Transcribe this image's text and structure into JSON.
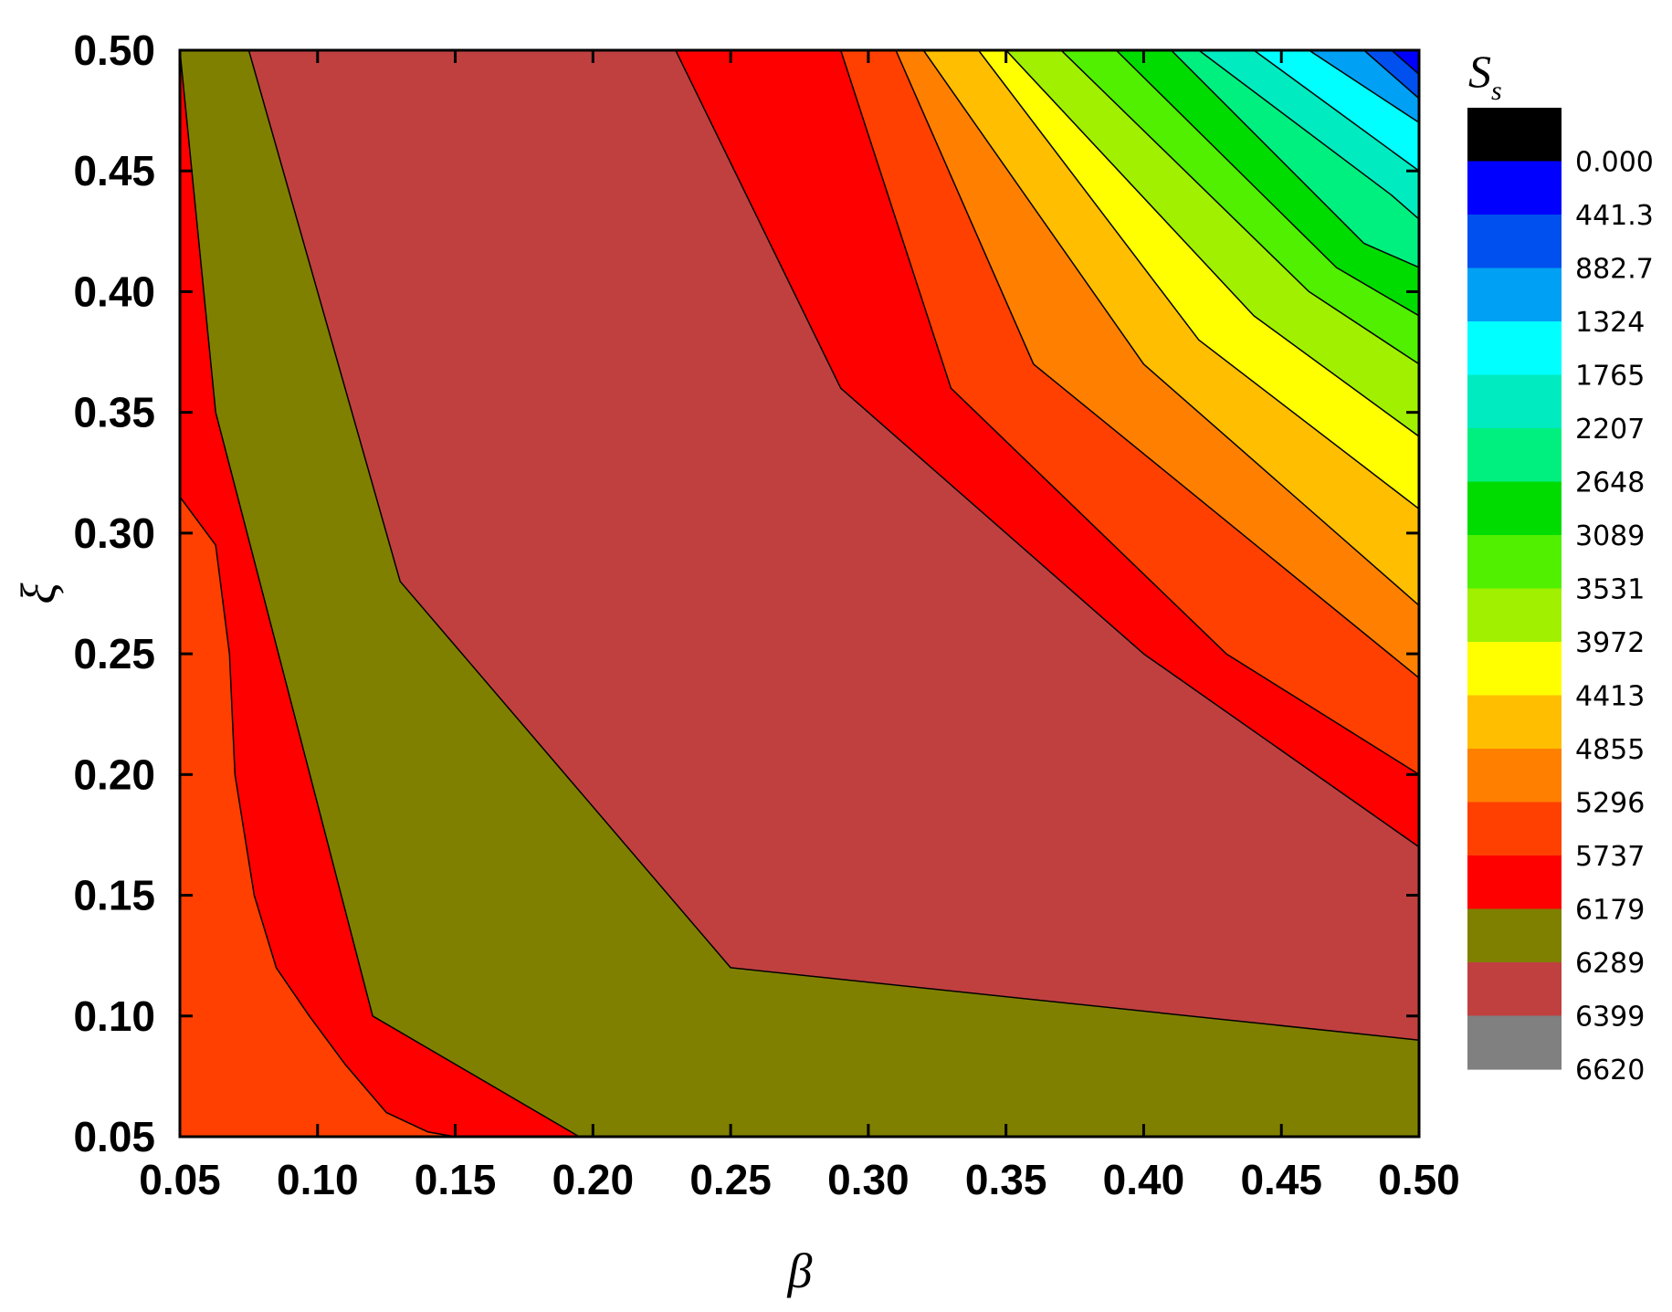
{
  "chart_data": {
    "type": "contour",
    "title": "",
    "xlabel": "β",
    "ylabel": "ξ",
    "xlim": [
      0.05,
      0.5
    ],
    "ylim": [
      0.05,
      0.5
    ],
    "x_ticks": [
      "0.05",
      "0.10",
      "0.15",
      "0.20",
      "0.25",
      "0.30",
      "0.35",
      "0.40",
      "0.45",
      "0.50"
    ],
    "y_ticks": [
      "0.05",
      "0.10",
      "0.15",
      "0.20",
      "0.25",
      "0.30",
      "0.35",
      "0.40",
      "0.45",
      "0.50"
    ],
    "colorbar": {
      "title": "S",
      "title_sub": "s",
      "levels": [
        "0.000",
        "441.3",
        "882.7",
        "1324",
        "1765",
        "2207",
        "2648",
        "3089",
        "3531",
        "3972",
        "4413",
        "4855",
        "5296",
        "5737",
        "6179",
        "6289",
        "6399",
        "6620"
      ],
      "colors": [
        "#000000",
        "#0000ff",
        "#0050f0",
        "#00a0f4",
        "#00ffff",
        "#00ebc0",
        "#00f080",
        "#00dc00",
        "#50f000",
        "#a0f000",
        "#ffff00",
        "#ffbe00",
        "#ff8000",
        "#ff4000",
        "#ff0000",
        "#808000",
        "#c04040",
        "#808080"
      ]
    },
    "regions": [
      {
        "fill": "#ff4000",
        "boundary": [
          [
            0.05,
            0.05
          ],
          [
            0.5,
            0.05
          ],
          [
            0.5,
            0.5
          ],
          [
            0.05,
            0.5
          ]
        ]
      },
      {
        "fill": "#ff0000",
        "boundary": [
          [
            0.05,
            0.5
          ],
          [
            0.05,
            0.315
          ],
          [
            0.063,
            0.295
          ],
          [
            0.068,
            0.25
          ],
          [
            0.07,
            0.2
          ],
          [
            0.077,
            0.15
          ],
          [
            0.085,
            0.12
          ],
          [
            0.097,
            0.1
          ],
          [
            0.11,
            0.08
          ],
          [
            0.125,
            0.06
          ],
          [
            0.14,
            0.052
          ],
          [
            0.15,
            0.05
          ],
          [
            0.5,
            0.05
          ],
          [
            0.5,
            0.5
          ]
        ]
      },
      {
        "fill": "#808000",
        "boundary": [
          [
            0.05,
            0.5
          ],
          [
            0.05,
            0.5
          ],
          [
            0.063,
            0.35
          ],
          [
            0.12,
            0.1
          ],
          [
            0.21,
            0.04
          ],
          [
            0.33,
            0.02
          ],
          [
            0.5,
            0.02
          ],
          [
            0.5,
            0.5
          ]
        ]
      },
      {
        "fill": "#c04040",
        "boundary": [
          [
            0.075,
            0.5
          ],
          [
            0.13,
            0.28
          ],
          [
            0.25,
            0.12
          ],
          [
            0.5,
            0.09
          ],
          [
            0.5,
            0.5
          ]
        ]
      },
      {
        "fill": "#ff0000",
        "boundary": [
          [
            0.23,
            0.5
          ],
          [
            0.29,
            0.36
          ],
          [
            0.4,
            0.25
          ],
          [
            0.5,
            0.17
          ],
          [
            0.5,
            0.5
          ]
        ]
      },
      {
        "fill": "#ff4000",
        "boundary": [
          [
            0.29,
            0.5
          ],
          [
            0.33,
            0.36
          ],
          [
            0.43,
            0.25
          ],
          [
            0.5,
            0.2
          ],
          [
            0.5,
            0.5
          ]
        ]
      },
      {
        "fill": "#ff8000",
        "boundary": [
          [
            0.31,
            0.5
          ],
          [
            0.36,
            0.37
          ],
          [
            0.5,
            0.24
          ],
          [
            0.5,
            0.5
          ]
        ]
      },
      {
        "fill": "#ffbe00",
        "boundary": [
          [
            0.32,
            0.5
          ],
          [
            0.4,
            0.37
          ],
          [
            0.5,
            0.27
          ],
          [
            0.5,
            0.5
          ]
        ]
      },
      {
        "fill": "#ffff00",
        "boundary": [
          [
            0.34,
            0.5
          ],
          [
            0.42,
            0.38
          ],
          [
            0.5,
            0.31
          ],
          [
            0.5,
            0.5
          ]
        ]
      },
      {
        "fill": "#a0f000",
        "boundary": [
          [
            0.35,
            0.5
          ],
          [
            0.44,
            0.39
          ],
          [
            0.5,
            0.34
          ],
          [
            0.5,
            0.5
          ]
        ]
      },
      {
        "fill": "#50f000",
        "boundary": [
          [
            0.37,
            0.5
          ],
          [
            0.46,
            0.4
          ],
          [
            0.5,
            0.37
          ],
          [
            0.5,
            0.5
          ]
        ]
      },
      {
        "fill": "#00dc00",
        "boundary": [
          [
            0.39,
            0.5
          ],
          [
            0.47,
            0.41
          ],
          [
            0.5,
            0.39
          ],
          [
            0.5,
            0.5
          ]
        ]
      },
      {
        "fill": "#00f080",
        "boundary": [
          [
            0.41,
            0.5
          ],
          [
            0.48,
            0.42
          ],
          [
            0.5,
            0.41
          ],
          [
            0.5,
            0.5
          ]
        ]
      },
      {
        "fill": "#00ebc0",
        "boundary": [
          [
            0.42,
            0.5
          ],
          [
            0.49,
            0.44
          ],
          [
            0.5,
            0.43
          ],
          [
            0.5,
            0.5
          ]
        ]
      },
      {
        "fill": "#00ffff",
        "boundary": [
          [
            0.44,
            0.5
          ],
          [
            0.5,
            0.45
          ],
          [
            0.5,
            0.5
          ]
        ]
      },
      {
        "fill": "#00a0f4",
        "boundary": [
          [
            0.46,
            0.5
          ],
          [
            0.5,
            0.47
          ],
          [
            0.5,
            0.5
          ]
        ]
      },
      {
        "fill": "#0050f0",
        "boundary": [
          [
            0.48,
            0.5
          ],
          [
            0.5,
            0.48
          ],
          [
            0.5,
            0.5
          ]
        ]
      },
      {
        "fill": "#0000ff",
        "boundary": [
          [
            0.49,
            0.5
          ],
          [
            0.5,
            0.49
          ],
          [
            0.5,
            0.5
          ]
        ]
      }
    ]
  }
}
